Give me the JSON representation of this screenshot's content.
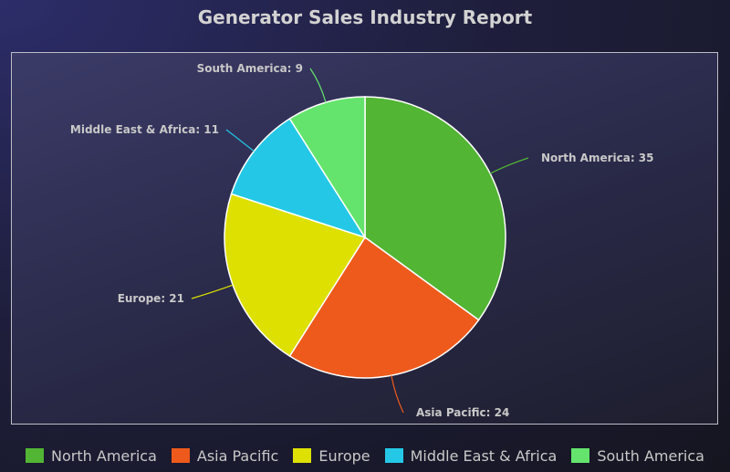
{
  "chart_data": {
    "type": "pie",
    "title": "Generator Sales Industry Report",
    "categories": [
      "North America",
      "Asia Pacific",
      "Europe",
      "Middle East & Africa",
      "South America"
    ],
    "values": [
      35,
      24,
      21,
      11,
      9
    ],
    "colors": [
      "#52b534",
      "#ee5a1c",
      "#dde000",
      "#24c8e6",
      "#64e46c"
    ],
    "legend_position": "bottom",
    "slice_labels": [
      "North America: 35",
      "Asia Pacific: 24",
      "Europe: 21",
      "Middle East & Africa: 11",
      "South America: 9"
    ]
  }
}
